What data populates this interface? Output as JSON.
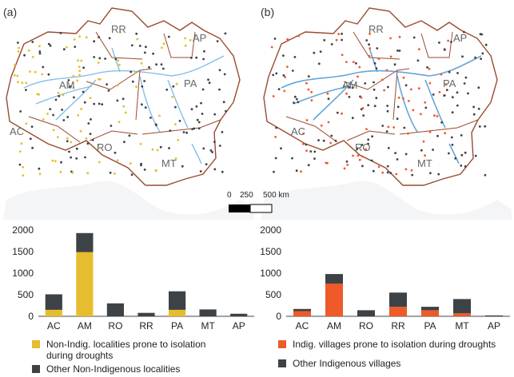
{
  "panels": [
    {
      "letter": "(a)",
      "states": [
        "RR",
        "AP",
        "AM",
        "PA",
        "AC",
        "RO",
        "MT"
      ],
      "colors": {
        "prone": "#e6bd2e",
        "other": "#3d4246",
        "rivers": "#5aa9dc"
      }
    },
    {
      "letter": "(b)",
      "states": [
        "RR",
        "AP",
        "AM",
        "PA",
        "AC",
        "RO",
        "MT"
      ],
      "colors": {
        "prone": "#ee5a2a",
        "other": "#3d4246",
        "rivers": "#5aa9dc"
      }
    }
  ],
  "scale_bar": {
    "labels": [
      "0",
      "250",
      "500 km"
    ]
  },
  "chart_data": [
    {
      "type": "bar",
      "stacked": true,
      "categories": [
        "AC",
        "AM",
        "RO",
        "RR",
        "PA",
        "MT",
        "AP"
      ],
      "series": [
        {
          "name": "Non-Indig. localities prone to isolation during droughts",
          "color": "#e6bd2e",
          "values": [
            150,
            1490,
            0,
            0,
            150,
            0,
            0
          ]
        },
        {
          "name": "Other Non-Indigenous localities",
          "color": "#3d4246",
          "values": [
            360,
            440,
            300,
            80,
            430,
            160,
            60
          ]
        }
      ],
      "ylim": [
        0,
        2000
      ],
      "yticks": [
        0,
        500,
        1000,
        1500,
        2000
      ],
      "legend_lines": [
        [
          "Non-Indig. localities prone to isolation",
          "during droughts"
        ],
        [
          "Other Non-Indigenous localities"
        ]
      ]
    },
    {
      "type": "bar",
      "stacked": true,
      "categories": [
        "AC",
        "AM",
        "RO",
        "RR",
        "PA",
        "MT",
        "AP"
      ],
      "series": [
        {
          "name": "Indig. villages prone to isolation during droughts",
          "color": "#ee5a2a",
          "values": [
            120,
            760,
            0,
            220,
            140,
            70,
            0
          ]
        },
        {
          "name": "Other Indigenous villages",
          "color": "#3d4246",
          "values": [
            50,
            220,
            140,
            330,
            80,
            330,
            20
          ]
        }
      ],
      "ylim": [
        0,
        2000
      ],
      "yticks": [
        0,
        500,
        1000,
        1500,
        2000
      ],
      "legend_lines": [
        [
          "Indig. villages prone to isolation during droughts"
        ],
        [
          "Other Indigenous villages"
        ]
      ]
    }
  ]
}
